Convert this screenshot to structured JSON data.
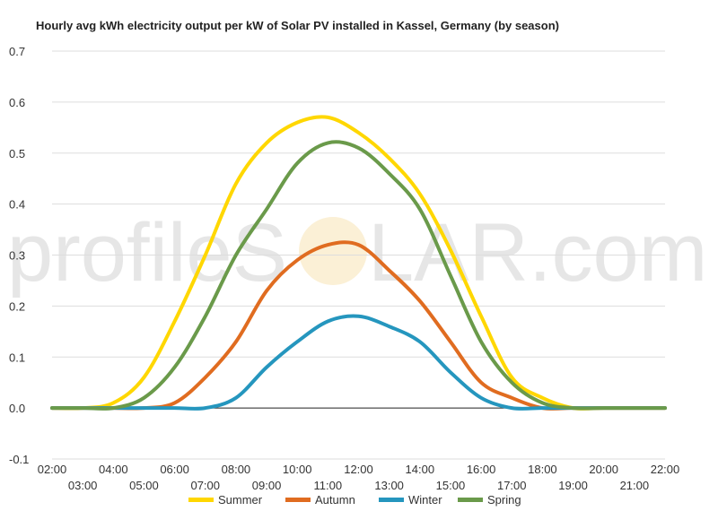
{
  "watermark": {
    "text_before": "profileS",
    "text_after": "LAR.com"
  },
  "chart_data": {
    "type": "line",
    "title": "Hourly avg kWh electricity output per kW of Solar PV installed in Kassel, Germany (by season)",
    "xlabel": "",
    "ylabel": "",
    "x": [
      "02:00",
      "03:00",
      "04:00",
      "05:00",
      "06:00",
      "07:00",
      "08:00",
      "09:00",
      "10:00",
      "11:00",
      "12:00",
      "13:00",
      "14:00",
      "15:00",
      "16:00",
      "17:00",
      "18:00",
      "19:00",
      "20:00",
      "21:00",
      "22:00"
    ],
    "x_tick_labels_upper": [
      "02:00",
      "04:00",
      "06:00",
      "08:00",
      "10:00",
      "12:00",
      "14:00",
      "16:00",
      "18:00",
      "20:00",
      "22:00"
    ],
    "x_tick_labels_lower": [
      "03:00",
      "05:00",
      "07:00",
      "09:00",
      "11:00",
      "13:00",
      "15:00",
      "17:00",
      "19:00",
      "21:00"
    ],
    "y_ticks": [
      "0.7",
      "0.6",
      "0.5",
      "0.4",
      "0.3",
      "0.2",
      "0.1",
      "0.0",
      "-0.1"
    ],
    "y_tick_values": [
      0.7,
      0.6,
      0.5,
      0.4,
      0.3,
      0.2,
      0.1,
      0.0,
      -0.1
    ],
    "ylim": [
      -0.1,
      0.7
    ],
    "grid": true,
    "legend_position": "bottom",
    "series": [
      {
        "name": "Summer",
        "color": "#ffd700",
        "values": [
          0,
          0,
          0.01,
          0.06,
          0.17,
          0.3,
          0.44,
          0.52,
          0.56,
          0.57,
          0.54,
          0.49,
          0.42,
          0.31,
          0.18,
          0.06,
          0.02,
          0,
          0,
          0,
          0
        ]
      },
      {
        "name": "Autumn",
        "color": "#e06c20",
        "values": [
          0,
          0,
          0,
          0,
          0.01,
          0.06,
          0.13,
          0.23,
          0.29,
          0.32,
          0.32,
          0.27,
          0.21,
          0.13,
          0.05,
          0.02,
          0,
          0,
          0,
          0,
          0
        ]
      },
      {
        "name": "Winter",
        "color": "#2596be",
        "values": [
          0,
          0,
          0,
          0,
          0,
          0,
          0.02,
          0.08,
          0.13,
          0.17,
          0.18,
          0.16,
          0.13,
          0.07,
          0.02,
          0,
          0,
          0,
          0,
          0,
          0
        ]
      },
      {
        "name": "Spring",
        "color": "#6a9a4a",
        "values": [
          0,
          0,
          0,
          0.02,
          0.08,
          0.18,
          0.3,
          0.39,
          0.48,
          0.52,
          0.51,
          0.46,
          0.39,
          0.26,
          0.13,
          0.05,
          0.01,
          0,
          0,
          0,
          0
        ]
      }
    ]
  }
}
